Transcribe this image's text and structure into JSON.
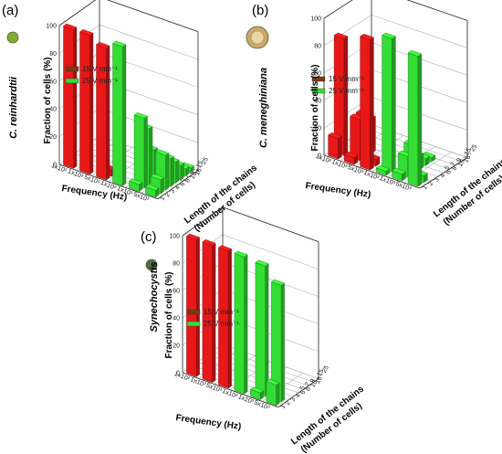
{
  "chart_data": [
    {
      "panel": "(a)",
      "type": "bar",
      "organism": "C. reinhardtii",
      "xlabel": "Frequency (Hz)",
      "ylabel": "Fraction of cells  (%)",
      "zlabel": [
        "Length of the chains",
        "(Number of cells)"
      ],
      "frequency_ticks": [
        "1x10²",
        "1x10³",
        "5x10³",
        "1x10²",
        "1x10³",
        "5x10³"
      ],
      "chain_ticks": [
        "1",
        "2",
        "3",
        "4 - 5",
        "6 - 7",
        "8 - 9",
        "10 - 15",
        "16 - 25"
      ],
      "yticks": [
        0,
        20,
        40,
        60,
        80,
        100
      ],
      "ylim": [
        0,
        100
      ],
      "series": [
        {
          "name": "15 V mm⁻¹",
          "color": "#e81818",
          "values": [
            [
              100,
              0,
              0,
              0,
              0,
              0,
              0,
              0
            ],
            [
              100,
              0,
              0,
              0,
              0,
              0,
              0,
              0
            ],
            [
              95,
              5,
              0,
              0,
              0,
              0,
              0,
              0
            ]
          ]
        },
        {
          "name": "25 V mm⁻¹",
          "color": "#33dd33",
          "values": [
            [
              100,
              0,
              0,
              0,
              0,
              0,
              0,
              0
            ],
            [
              5,
              50,
              40,
              22,
              15,
              5,
              3,
              1
            ],
            [
              5,
              10,
              25,
              20,
              15,
              10,
              5,
              3
            ]
          ]
        }
      ]
    },
    {
      "panel": "(b)",
      "type": "bar",
      "organism": "C. meneghiniana",
      "xlabel": "Frequency (Hz)",
      "ylabel": "Fraction of cells  (%)",
      "zlabel": [
        "Length of the chains",
        "(Number of cells)"
      ],
      "frequency_ticks": [
        "1x10²",
        "1x10³",
        "5x10³",
        "1x10²",
        "1x10³",
        "5x10³"
      ],
      "chain_ticks": [
        "1",
        "2",
        "3",
        "4 - 5",
        "6 - 7",
        "8 - 9",
        "10 - 15",
        "16 - 25"
      ],
      "yticks": [
        0,
        20,
        40,
        60,
        80,
        100
      ],
      "ylim": [
        0,
        100
      ],
      "series": [
        {
          "name": "15 V mm⁻¹",
          "color": "#e81818",
          "values": [
            [
              15,
              85,
              0,
              0,
              0,
              0,
              0,
              0
            ],
            [
              5,
              30,
              30,
              25,
              0,
              0,
              0,
              0
            ],
            [
              95,
              5,
              0,
              0,
              0,
              0,
              0,
              0
            ]
          ]
        },
        {
          "name": "25 V mm⁻¹",
          "color": "#33dd33",
          "values": [
            [
              3,
              97,
              0,
              0,
              0,
              0,
              0,
              0
            ],
            [
              5,
              15,
              20,
              10,
              5,
              3,
              0,
              0
            ],
            [
              95,
              5,
              0,
              0,
              0,
              0,
              0,
              0
            ]
          ]
        }
      ]
    },
    {
      "panel": "(c)",
      "type": "bar",
      "organism": "Synechocystis",
      "xlabel": "Frequency (Hz)",
      "ylabel": "Fraction of cells (%)",
      "zlabel": [
        "Length of the chains",
        "(Number of cells)"
      ],
      "frequency_ticks": [
        "1x10²",
        "1x10³",
        "5x10³",
        "1x10²",
        "1x10³",
        "5x10³"
      ],
      "chain_ticks": [
        "1",
        "2",
        "3",
        "4 - 5",
        "6 - 7",
        "8 - 9",
        "10 - 15",
        "16 - 25"
      ],
      "yticks": [
        0,
        20,
        40,
        60,
        80,
        100
      ],
      "ylim": [
        0,
        100
      ],
      "series": [
        {
          "name": "15 V mm⁻¹",
          "color": "#e81818",
          "values": [
            [
              100,
              0,
              0,
              0,
              0,
              0,
              0,
              0
            ],
            [
              100,
              0,
              0,
              0,
              0,
              0,
              0,
              0
            ],
            [
              100,
              0,
              0,
              0,
              0,
              0,
              0,
              0
            ]
          ]
        },
        {
          "name": "25 V mm⁻¹",
          "color": "#33dd33",
          "values": [
            [
              100,
              0,
              0,
              0,
              0,
              0,
              0,
              0
            ],
            [
              5,
              95,
              0,
              0,
              0,
              0,
              0,
              0
            ],
            [
              15,
              85,
              0,
              0,
              0,
              0,
              0,
              0
            ]
          ]
        }
      ]
    }
  ]
}
